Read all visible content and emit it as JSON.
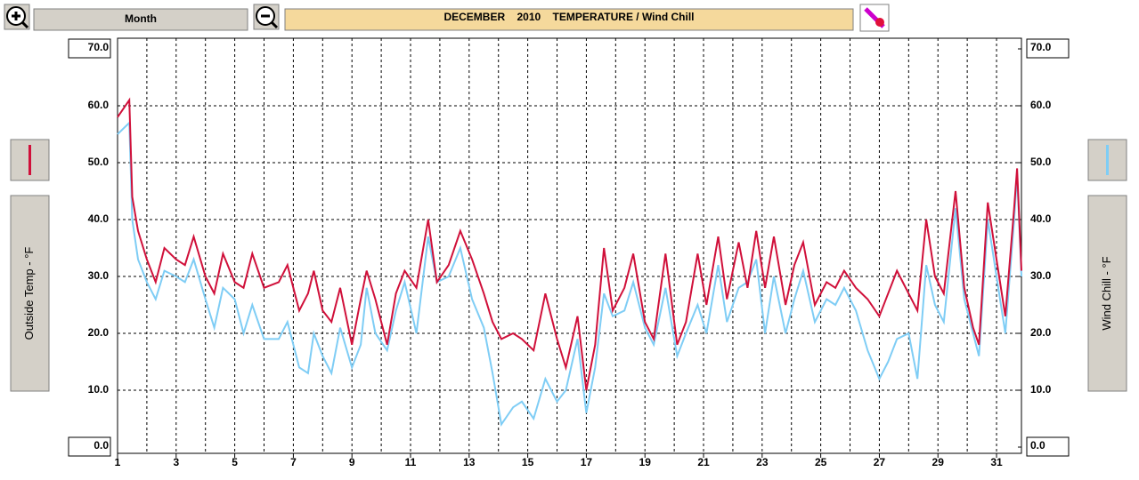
{
  "toolbar": {
    "period": "Month",
    "title": "DECEMBER    2010    TEMPERATURE / Wind Chill"
  },
  "chart_data": {
    "type": "line",
    "x": [
      1,
      1.4,
      1.5,
      1.7,
      2,
      2.3,
      2.6,
      3,
      3.3,
      3.6,
      4,
      4.3,
      4.6,
      5,
      5.3,
      5.6,
      6,
      6.5,
      6.8,
      7.2,
      7.5,
      7.7,
      8,
      8.3,
      8.6,
      9,
      9.3,
      9.5,
      9.8,
      10.2,
      10.5,
      10.8,
      11.2,
      11.6,
      11.9,
      12.3,
      12.7,
      13.1,
      13.5,
      13.8,
      14.1,
      14.5,
      14.8,
      15.2,
      15.6,
      16,
      16.3,
      16.7,
      17,
      17.3,
      17.6,
      17.9,
      18.3,
      18.6,
      19,
      19.3,
      19.7,
      20.1,
      20.4,
      20.8,
      21.1,
      21.5,
      21.8,
      22.2,
      22.5,
      22.8,
      23.1,
      23.4,
      23.8,
      24.1,
      24.4,
      24.8,
      25.2,
      25.5,
      25.8,
      26.2,
      26.6,
      27,
      27.3,
      27.6,
      28,
      28.3,
      28.6,
      28.9,
      29.2,
      29.6,
      29.9,
      30.2,
      30.4,
      30.7,
      31,
      31.3,
      31.6,
      31.7,
      31.85
    ],
    "series": [
      {
        "name": "Outside Temp - °F",
        "color": "#d0103a",
        "values": [
          58,
          61,
          44,
          38,
          33,
          29,
          35,
          33,
          32,
          37,
          30,
          27,
          34,
          29,
          28,
          34,
          28,
          29,
          32,
          24,
          27,
          31,
          24,
          22,
          28,
          18,
          26,
          31,
          26,
          18,
          27,
          31,
          28,
          40,
          29,
          32,
          38,
          33,
          27,
          22,
          19,
          20,
          19,
          17,
          27,
          19,
          14,
          23,
          10,
          18,
          35,
          24,
          28,
          34,
          22,
          19,
          34,
          18,
          22,
          34,
          25,
          37,
          26,
          36,
          28,
          38,
          28,
          37,
          25,
          32,
          36,
          25,
          29,
          28,
          31,
          28,
          26,
          23,
          27,
          31,
          27,
          24,
          40,
          30,
          27,
          45,
          28,
          21,
          18,
          43,
          33,
          23,
          42,
          49,
          31
        ]
      },
      {
        "name": "Wind Chill - °F",
        "color": "#7fcdf5",
        "axis": "y2",
        "values": [
          55,
          57,
          40,
          33,
          29,
          26,
          31,
          30,
          29,
          33,
          26,
          21,
          28,
          26,
          20,
          25,
          19,
          19,
          22,
          14,
          13,
          20,
          16,
          13,
          21,
          14,
          18,
          28,
          20,
          17,
          24,
          29,
          20,
          37,
          29,
          30,
          35,
          26,
          21,
          13,
          4,
          7,
          8,
          5,
          12,
          8,
          10,
          19,
          6,
          14,
          27,
          23,
          24,
          29,
          21,
          18,
          28,
          16,
          20,
          25,
          20,
          32,
          22,
          28,
          29,
          33,
          20,
          30,
          20,
          26,
          31,
          22,
          26,
          25,
          28,
          24,
          17,
          12,
          15,
          19,
          20,
          12,
          32,
          25,
          22,
          42,
          26,
          20,
          16,
          40,
          30,
          20,
          40,
          48,
          30
        ]
      }
    ],
    "xlim": [
      1,
      31.85
    ],
    "xticks": [
      1,
      3,
      5,
      7,
      9,
      11,
      13,
      15,
      17,
      19,
      21,
      23,
      25,
      27,
      29,
      31
    ],
    "ylim": [
      0,
      70
    ],
    "yticks": [
      {
        "value": 0,
        "label": "0.0"
      },
      {
        "value": 10,
        "label": "10.0"
      },
      {
        "value": 20,
        "label": "20.0"
      },
      {
        "value": 30,
        "label": "30.0"
      },
      {
        "value": 40,
        "label": "40.0"
      },
      {
        "value": 50,
        "label": "50.0"
      },
      {
        "value": 60,
        "label": "60.0"
      },
      {
        "value": 70,
        "label": "70.0"
      }
    ],
    "y2lim": [
      0,
      70
    ],
    "y2ticks": [
      {
        "value": 0,
        "label": "0.0"
      },
      {
        "value": 10,
        "label": "10.0"
      },
      {
        "value": 20,
        "label": "20.0"
      },
      {
        "value": 30,
        "label": "30.0"
      },
      {
        "value": 40,
        "label": "40.0"
      },
      {
        "value": 50,
        "label": "50.0"
      },
      {
        "value": 60,
        "label": "60.0"
      },
      {
        "value": 70,
        "label": "70.0"
      }
    ],
    "grid": true
  }
}
